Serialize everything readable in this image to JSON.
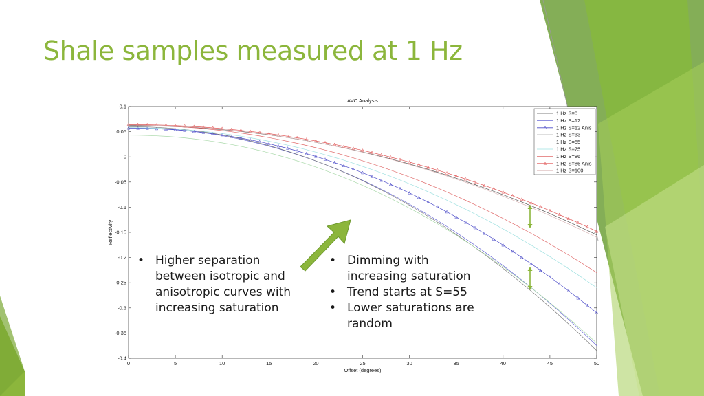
{
  "slide": {
    "title": "Shale samples measured at 1 Hz",
    "bullets_left": [
      "Higher separation between isotropic and anisotropic curves with increasing saturation"
    ],
    "bullets_right": [
      "Dimming with increasing saturation",
      " Trend starts at S=55",
      "Lower saturations are random"
    ],
    "accent_color": "#8CB63C",
    "arrow_color": "#8CB63C"
  },
  "chart_data": {
    "type": "line",
    "title": "AVO Analysis",
    "xlabel": "Offset (degrees)",
    "ylabel": "Reflectivity",
    "xlim": [
      0,
      50
    ],
    "ylim": [
      -0.4,
      0.1
    ],
    "xticks": [
      0,
      5,
      10,
      15,
      20,
      25,
      30,
      35,
      40,
      45,
      50
    ],
    "yticks": [
      0.1,
      0.05,
      0,
      -0.05,
      -0.1,
      -0.15,
      -0.2,
      -0.25,
      -0.3,
      -0.35,
      -0.4
    ],
    "ytick_labels": [
      "0.1",
      "0.05",
      "0",
      "-0.05",
      "-0.1",
      "-0.15",
      "-0.2",
      "-0.25",
      "-0.3",
      "-0.35",
      "-0.4"
    ],
    "legend_position": "top-right",
    "grid": false,
    "series": [
      {
        "name": "1 Hz S=0",
        "color": "#555555",
        "y0": 0.062,
        "y50": -0.155,
        "marker": "none"
      },
      {
        "name": "1 Hz S=12",
        "color": "#6b6bd6",
        "y0": 0.058,
        "y50": -0.375,
        "marker": "none"
      },
      {
        "name": "1 Hz S=12 Anis",
        "color": "#4a4ac8",
        "y0": 0.057,
        "y50": -0.31,
        "marker": "triangle"
      },
      {
        "name": "1 Hz S=33",
        "color": "#7a7a7a",
        "y0": 0.06,
        "y50": -0.385,
        "marker": "none"
      },
      {
        "name": "1 Hz S=55",
        "color": "#a8d8a8",
        "y0": 0.043,
        "y50": -0.37,
        "marker": "none"
      },
      {
        "name": "1 Hz S=75",
        "color": "#9ee0e0",
        "y0": 0.058,
        "y50": -0.26,
        "marker": "none"
      },
      {
        "name": "1 Hz S=86",
        "color": "#e06b6b",
        "y0": 0.063,
        "y50": -0.23,
        "marker": "none"
      },
      {
        "name": "1 Hz S=86 Anis",
        "color": "#e05555",
        "y0": 0.064,
        "y50": -0.148,
        "marker": "triangle"
      },
      {
        "name": "1 Hz S=100",
        "color": "#d9b6b6",
        "y0": 0.063,
        "y50": -0.16,
        "marker": "none"
      }
    ]
  }
}
